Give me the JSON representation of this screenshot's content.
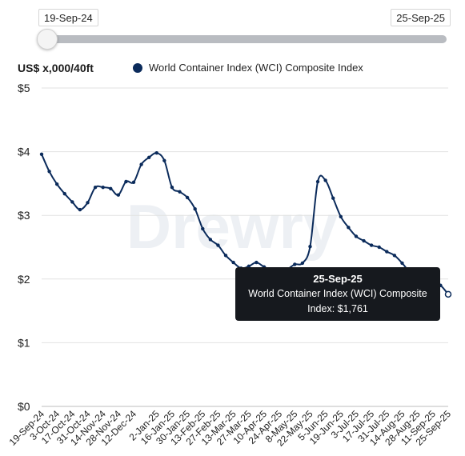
{
  "slider": {
    "start": "19-Sep-24",
    "end": "25-Sep-25"
  },
  "y_unit": "US$ x,000/40ft",
  "tooltip": {
    "date": "25-Sep-25",
    "label_line1": "World Container Index (WCI) Composite",
    "label_line2": "Index: $1,761"
  },
  "watermark": "Drewry",
  "colors": {
    "series": "#0b2b5b",
    "grid": "#e2e2e2",
    "tooltip_bg": "#16191e"
  },
  "chart_data": {
    "type": "line",
    "title": "",
    "xlabel": "",
    "ylabel": "US$ x,000/40ft",
    "ylim": [
      0,
      5
    ],
    "y_ticks": [
      "$0",
      "$1",
      "$2",
      "$3",
      "$4",
      "$5"
    ],
    "y_tick_values": [
      0,
      1,
      2,
      3,
      4,
      5
    ],
    "x_tick_labels": [
      "19-Sep-24",
      "3-Oct-24",
      "17-Oct-24",
      "31-Oct-24",
      "14-Nov-24",
      "28-Nov-24",
      "12-Dec-24",
      "2-Jan-25",
      "16-Jan-25",
      "30-Jan-25",
      "13-Feb-25",
      "27-Feb-25",
      "13-Mar-25",
      "27-Mar-25",
      "10-Apr-25",
      "24-Apr-25",
      "8-May-25",
      "22-May-25",
      "5-Jun-25",
      "19-Jun-25",
      "3-Jul-25",
      "17-Jul-25",
      "31-Jul-25",
      "14-Aug-25",
      "28-Aug-25",
      "11-Sep-25",
      "25-Sep-25"
    ],
    "grid": true,
    "legend_position": "top",
    "series": [
      {
        "name": "World Container Index (WCI) Composite Index",
        "x": [
          "19-Sep-24",
          "26-Sep-24",
          "3-Oct-24",
          "10-Oct-24",
          "17-Oct-24",
          "24-Oct-24",
          "31-Oct-24",
          "7-Nov-24",
          "14-Nov-24",
          "21-Nov-24",
          "28-Nov-24",
          "5-Dec-24",
          "12-Dec-24",
          "19-Dec-24",
          "26-Dec-24",
          "2-Jan-25",
          "9-Jan-25",
          "16-Jan-25",
          "23-Jan-25",
          "30-Jan-25",
          "6-Feb-25",
          "13-Feb-25",
          "20-Feb-25",
          "27-Feb-25",
          "6-Mar-25",
          "13-Mar-25",
          "20-Mar-25",
          "27-Mar-25",
          "3-Apr-25",
          "10-Apr-25",
          "17-Apr-25",
          "24-Apr-25",
          "1-May-25",
          "8-May-25",
          "15-May-25",
          "22-May-25",
          "29-May-25",
          "5-Jun-25",
          "12-Jun-25",
          "19-Jun-25",
          "26-Jun-25",
          "3-Jul-25",
          "10-Jul-25",
          "17-Jul-25",
          "24-Jul-25",
          "31-Jul-25",
          "7-Aug-25",
          "14-Aug-25",
          "21-Aug-25",
          "28-Aug-25",
          "4-Sep-25",
          "11-Sep-25",
          "18-Sep-25",
          "25-Sep-25"
        ],
        "values": [
          3.96,
          3.69,
          3.49,
          3.34,
          3.21,
          3.09,
          3.2,
          3.44,
          3.44,
          3.42,
          3.32,
          3.53,
          3.52,
          3.8,
          3.91,
          3.98,
          3.86,
          3.44,
          3.37,
          3.28,
          3.1,
          2.79,
          2.62,
          2.53,
          2.37,
          2.26,
          2.17,
          2.2,
          2.26,
          2.19,
          2.14,
          2.11,
          2.15,
          2.23,
          2.25,
          2.51,
          3.53,
          3.55,
          3.27,
          2.98,
          2.81,
          2.67,
          2.6,
          2.53,
          2.5,
          2.43,
          2.37,
          2.25,
          2.11,
          2.04,
          1.98,
          1.93,
          1.9,
          1.761
        ]
      }
    ]
  }
}
